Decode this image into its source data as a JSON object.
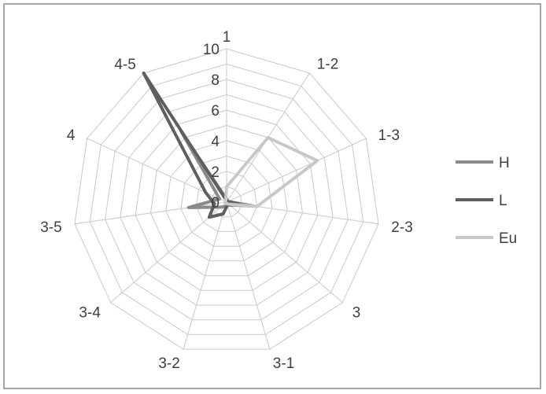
{
  "chart_data": {
    "type": "radar",
    "title": "",
    "categories": [
      "1",
      "1-2",
      "1-3",
      "2-3",
      "3",
      "3-1",
      "3-2",
      "3-4",
      "3-5",
      "4",
      "4-5"
    ],
    "rlim": [
      0,
      10
    ],
    "ticks": [
      0,
      2,
      4,
      6,
      8,
      10
    ],
    "grid": true,
    "legend_position": "right",
    "series": [
      {
        "name": "H",
        "color": "#8a8a8a",
        "values": [
          0.2,
          0.1,
          0.1,
          1.8,
          0.3,
          0.1,
          0.3,
          0.5,
          2.5,
          0.5,
          5.5
        ]
      },
      {
        "name": "L",
        "color": "#5f5f5f",
        "values": [
          0.1,
          0.1,
          0.1,
          0.8,
          0.3,
          0.2,
          0.8,
          1.5,
          0.8,
          1.5,
          10
        ]
      },
      {
        "name": "Eu",
        "color": "#c8c8c8",
        "values": [
          1.0,
          5.0,
          6.5,
          2.0,
          0.2,
          0.1,
          0.1,
          0.1,
          0.1,
          0.1,
          0.1
        ]
      }
    ]
  }
}
